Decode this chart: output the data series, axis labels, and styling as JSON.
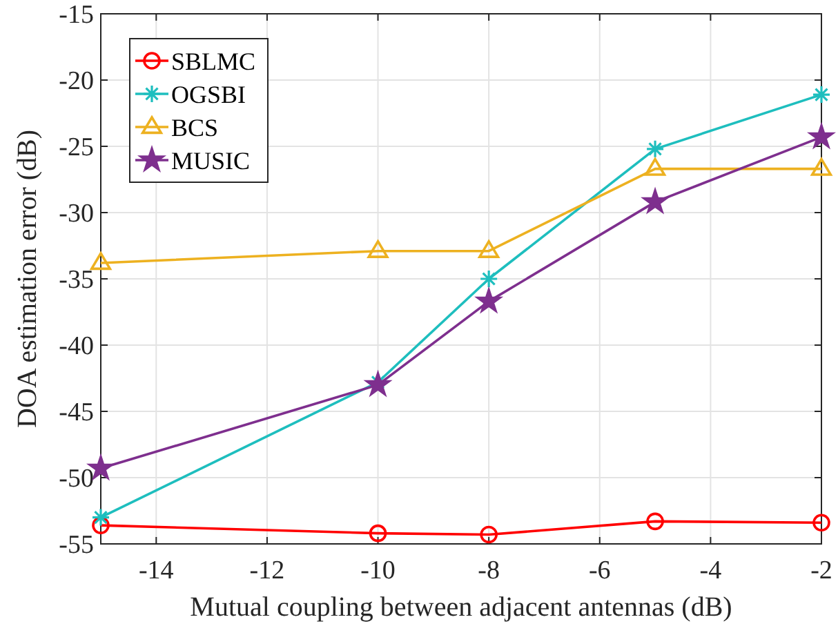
{
  "chart_data": {
    "type": "line",
    "xlabel": "Mutual coupling between adjacent antennas (dB)",
    "ylabel": "DOA estimation error (dB)",
    "x": [
      -15,
      -10,
      -8,
      -5,
      -2
    ],
    "xlim": [
      -15,
      -2
    ],
    "xticks": [
      -14,
      -12,
      -10,
      -8,
      -6,
      -4,
      -2
    ],
    "ylim": [
      -55,
      -15
    ],
    "yticks": [
      -55,
      -50,
      -45,
      -40,
      -35,
      -30,
      -25,
      -20,
      -15
    ],
    "grid": true,
    "legend": "top left",
    "series": [
      {
        "name": "SBLMC",
        "color": "#ff0000",
        "marker": "circle",
        "values": [
          -53.6,
          -54.2,
          -54.3,
          -53.3,
          -53.4
        ]
      },
      {
        "name": "OGSBI",
        "color": "#1ebebe",
        "marker": "cross",
        "values": [
          -53.0,
          -42.8,
          -35.0,
          -25.2,
          -21.1
        ]
      },
      {
        "name": "BCS",
        "color": "#edb120",
        "marker": "triangle",
        "values": [
          -33.8,
          -32.9,
          -32.9,
          -26.7,
          -26.7
        ]
      },
      {
        "name": "MUSIC",
        "color": "#7e2f8e",
        "marker": "star",
        "values": [
          -49.3,
          -43.0,
          -36.7,
          -29.2,
          -24.3
        ]
      }
    ]
  }
}
